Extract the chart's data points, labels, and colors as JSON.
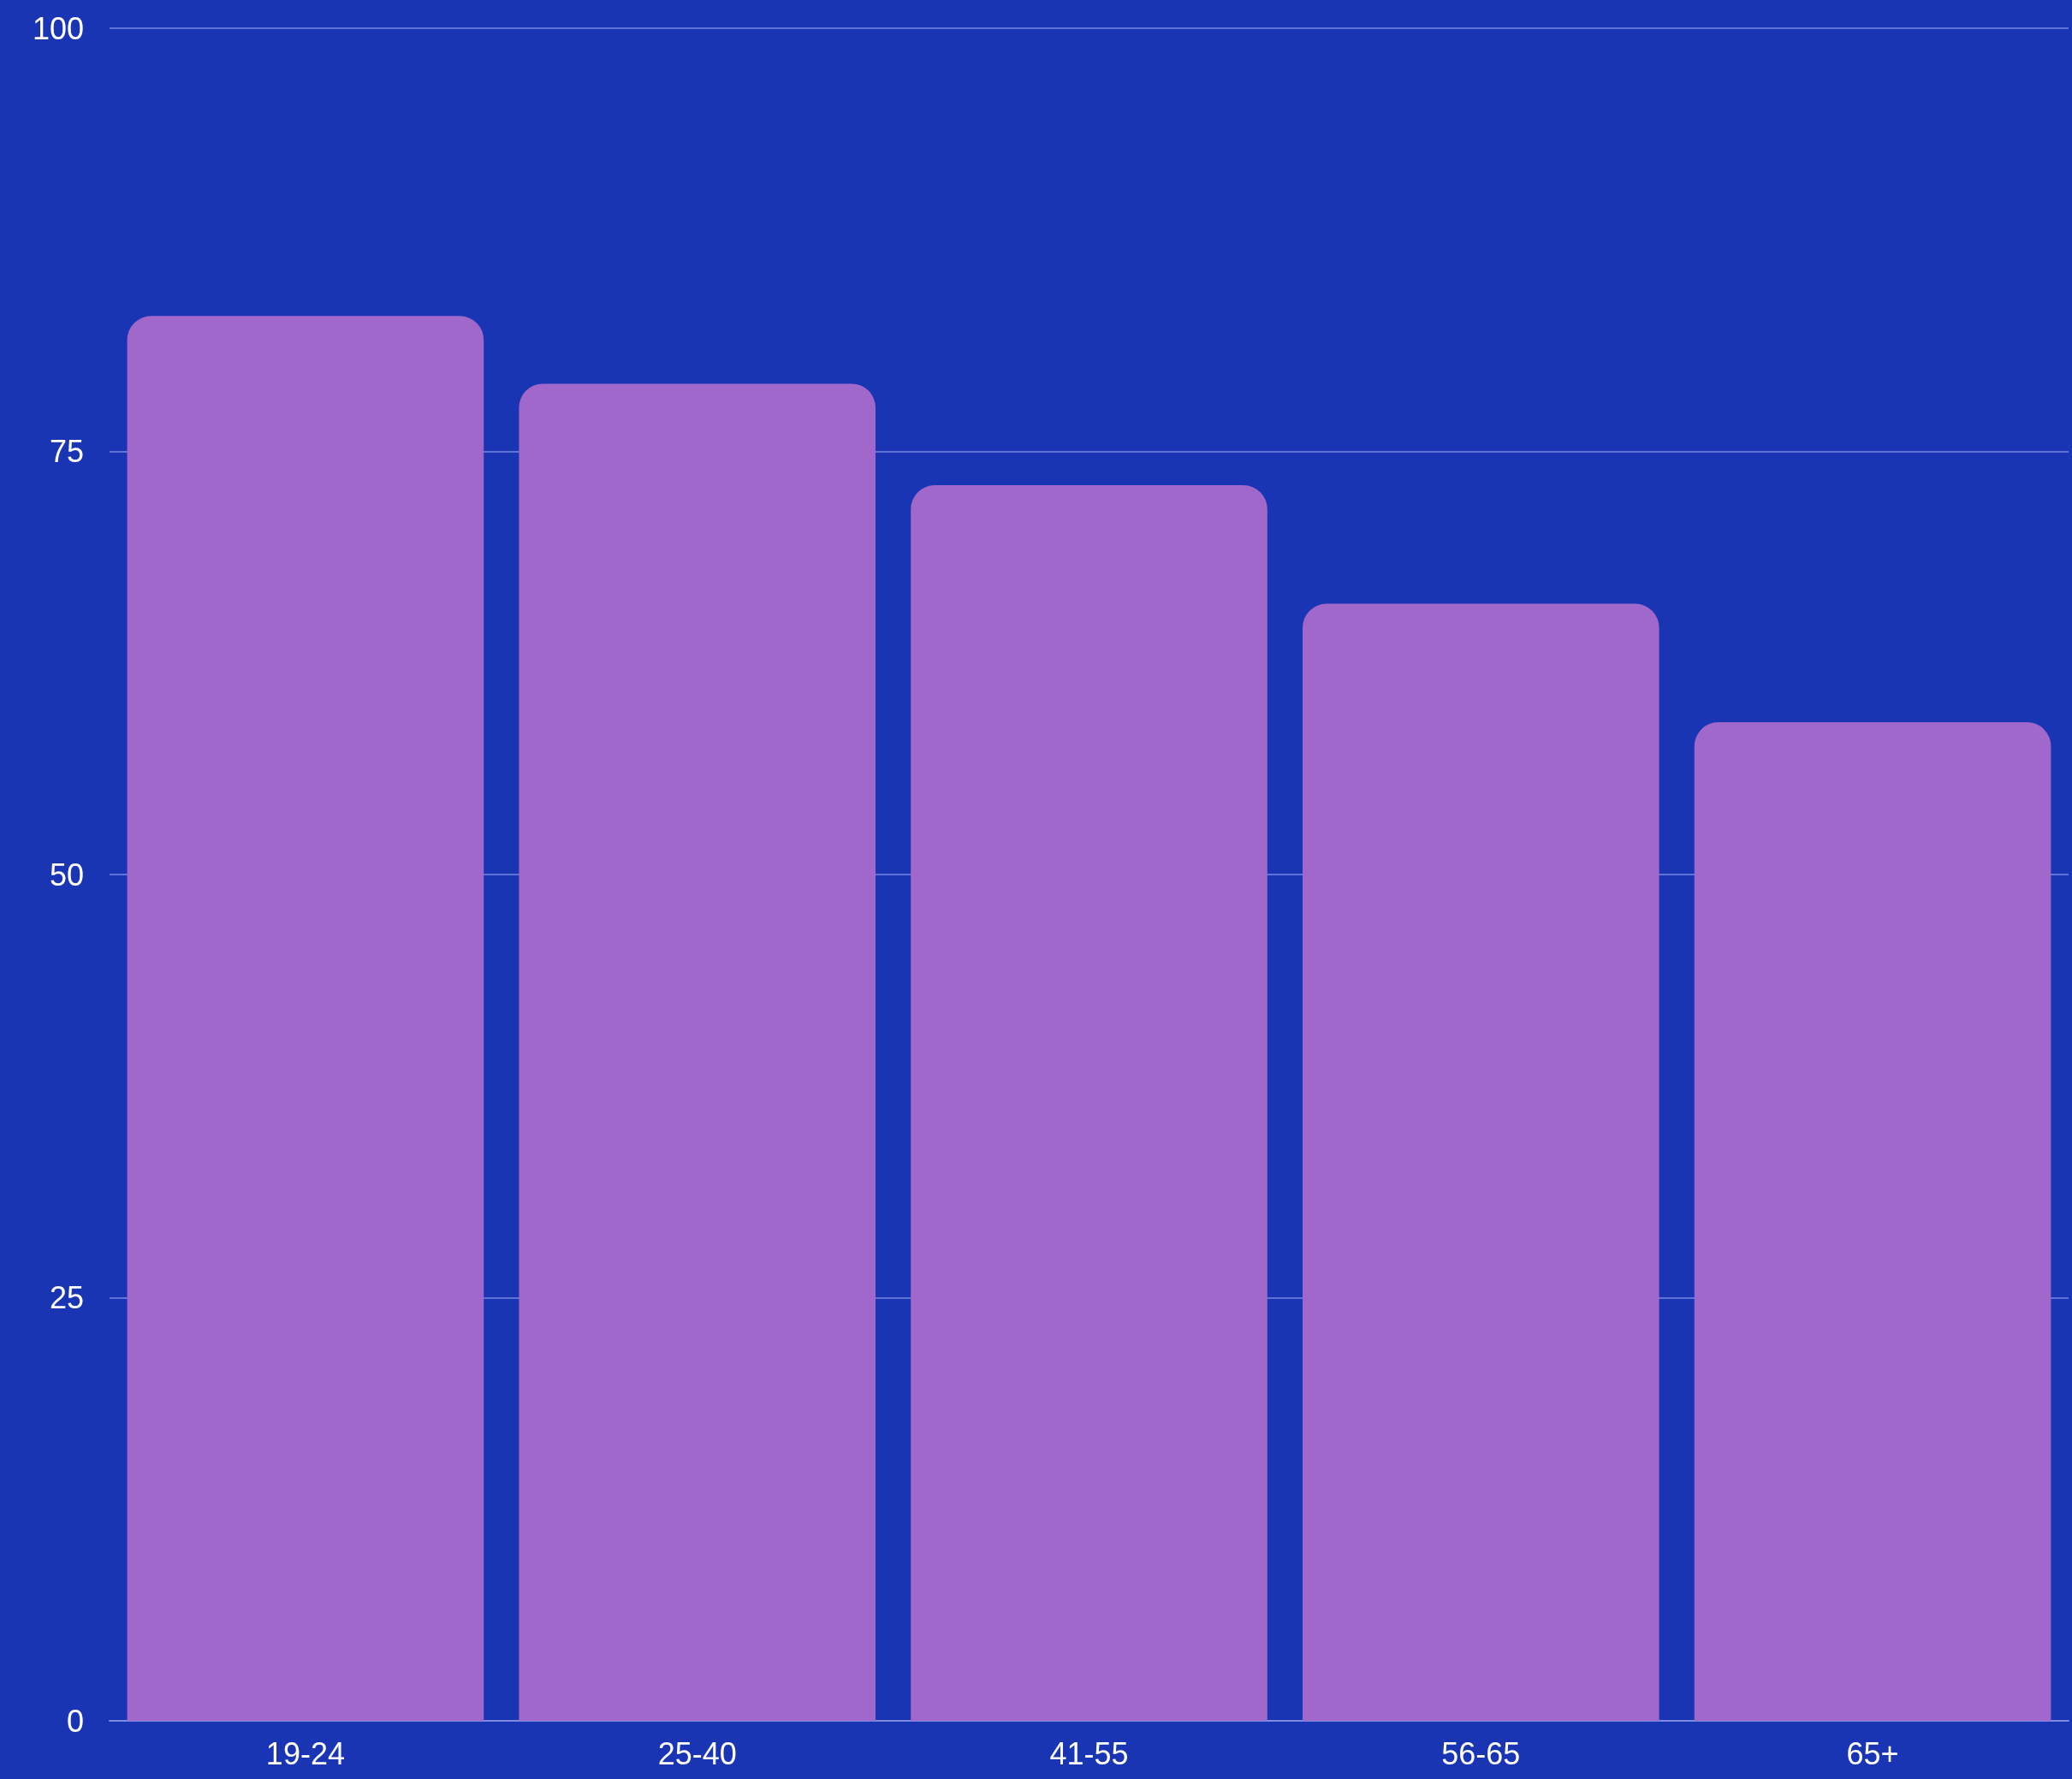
{
  "chart_data": {
    "type": "bar",
    "categories": [
      "19-24",
      "25-40",
      "41-55",
      "56-65",
      "65+"
    ],
    "values": [
      83,
      79,
      73,
      66,
      59
    ],
    "color": "#a068cb",
    "ylim": [
      0,
      100
    ],
    "yticks": [
      0,
      25,
      50,
      75,
      100
    ],
    "grid": "y"
  }
}
